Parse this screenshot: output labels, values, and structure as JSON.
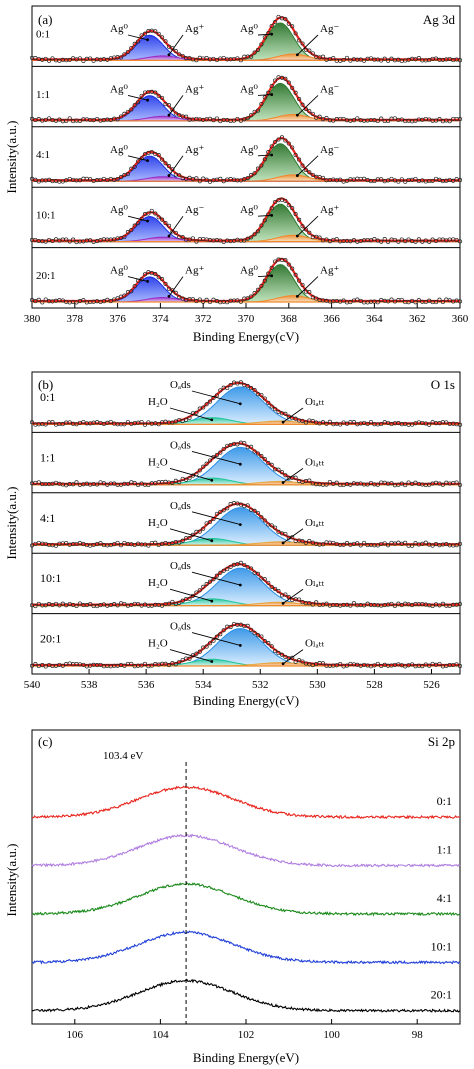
{
  "figure": {
    "panels": [
      {
        "id": "a",
        "label": "(a)",
        "element": "Ag 3d",
        "xlabel": "Binding Energy(cV)",
        "ylabel": "Intensity(a.u.)"
      },
      {
        "id": "b",
        "label": "(b)",
        "element": "O 1s",
        "xlabel": "Binding Energy(cV)",
        "ylabel": "Intensity(a.u.)"
      },
      {
        "id": "c",
        "label": "(c)",
        "element": "Si 2p",
        "xlabel": "Binding Energy(eV)",
        "ylabel": "Intensity(a.u.)",
        "marker_label": "103.4 eV"
      }
    ]
  },
  "chart_data": [
    {
      "type": "line",
      "panel": "(a)",
      "title": "Ag 3d",
      "xlabel": "Binding Energy(cV)",
      "ylabel": "Intensity(a.u.)",
      "xlim": [
        380,
        360
      ],
      "xticks": [
        380,
        378,
        376,
        374,
        372,
        370,
        368,
        366,
        364,
        362,
        360
      ],
      "samples": [
        "0:1",
        "1:1",
        "4:1",
        "10:1",
        "20:1"
      ],
      "peak_labels": [
        [
          "Ag⁰",
          "Ag⁺",
          "Ag⁰",
          "Ag⁻"
        ],
        [
          "Ag⁰",
          "Ag⁺",
          "Ag⁰",
          "Ag⁻"
        ],
        [
          "Ag⁰",
          "Ag⁺",
          "Ag⁰",
          "Ag⁻"
        ],
        [
          "Ag⁰",
          "Ag⁻",
          "Ag⁰",
          "Ag⁺"
        ],
        [
          "Ag⁰",
          "Ag⁺",
          "Ag⁰",
          "Ag⁺"
        ]
      ],
      "components": [
        {
          "name": "Ag⁰ 3d5/2",
          "center": 368.4,
          "fwhm": 1.5,
          "color": "#2e7d32"
        },
        {
          "name": "Ag⁺ 3d5/2",
          "center": 367.8,
          "fwhm": 1.7,
          "color": "#f5862a"
        },
        {
          "name": "Ag⁰ 3d3/2",
          "center": 374.5,
          "fwhm": 1.5,
          "color": "#1a2fe8"
        },
        {
          "name": "Ag⁺ 3d3/2",
          "center": 373.9,
          "fwhm": 1.7,
          "color": "#9b2cc4"
        }
      ],
      "ratios": {
        "Ag0_3d5": 1.0,
        "Agplus_3d5": 0.17,
        "Ag0_3d3": 0.67,
        "Agplus_3d3": 0.12
      }
    },
    {
      "type": "line",
      "panel": "(b)",
      "title": "O 1s",
      "xlabel": "Binding Energy(cV)",
      "ylabel": "Intensity(a.u.)",
      "xlim": [
        540,
        525
      ],
      "xticks": [
        540,
        538,
        536,
        534,
        532,
        530,
        528,
        526
      ],
      "samples": [
        "0:1",
        "1:1",
        "4:1",
        "10:1",
        "20:1"
      ],
      "peak_labels": [
        "Oₐds",
        "H₂O",
        "Oₗₐₜₜ"
      ],
      "components": [
        {
          "name": "O ads",
          "center": 532.7,
          "fwhm": 1.9,
          "color": "#2a8fe6"
        },
        {
          "name": "H2O",
          "center": 533.7,
          "fwhm": 1.6,
          "color": "#21c49a"
        },
        {
          "name": "O latt",
          "center": 531.3,
          "fwhm": 1.8,
          "color": "#e8a63a"
        }
      ],
      "ratios": {
        "O_ads": 1.0,
        "H2O": 0.18,
        "O_latt": 0.09
      }
    },
    {
      "type": "line",
      "panel": "(c)",
      "title": "Si 2p",
      "xlabel": "Binding Energy(eV)",
      "ylabel": "Intensity(a.u.)",
      "xlim": [
        107,
        97
      ],
      "xticks": [
        106,
        104,
        102,
        100,
        98
      ],
      "marker": {
        "x": 103.4,
        "label": "103.4 eV"
      },
      "series": [
        {
          "name": "0:1",
          "color": "#e8241c",
          "center": 103.4,
          "fwhm": 2.6
        },
        {
          "name": "1:1",
          "color": "#b07ee0",
          "center": 103.4,
          "fwhm": 2.6
        },
        {
          "name": "4:1",
          "color": "#1a8a1a",
          "center": 103.4,
          "fwhm": 2.6
        },
        {
          "name": "10:1",
          "color": "#2140d8",
          "center": 103.4,
          "fwhm": 2.6
        },
        {
          "name": "20:1",
          "color": "#000000",
          "center": 103.4,
          "fwhm": 2.6
        }
      ]
    }
  ]
}
